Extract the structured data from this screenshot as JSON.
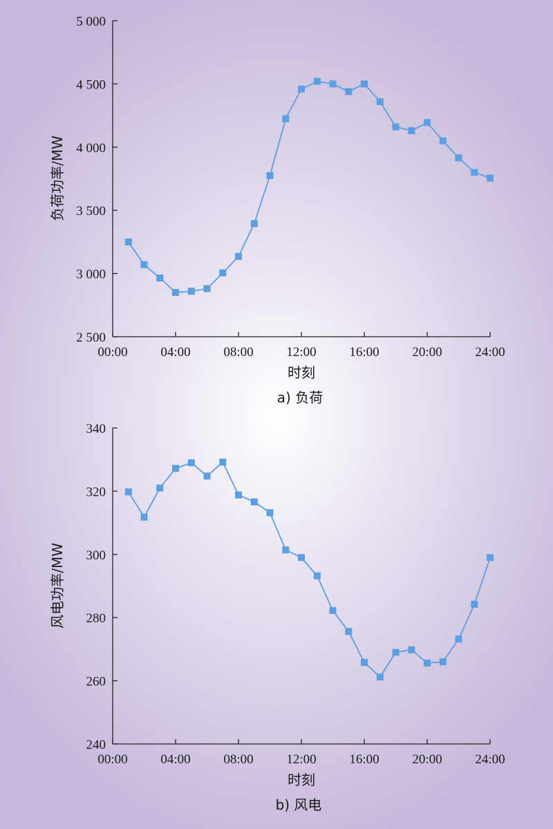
{
  "colors": {
    "series": "#5b9fe0",
    "axis": "#222222"
  },
  "chart_data": [
    {
      "type": "line",
      "caption": "a) 负荷",
      "xlabel": "时刻",
      "ylabel": "负荷功率/MW",
      "x_ticks": [
        "00:00",
        "04:00",
        "08:00",
        "12:00",
        "16:00",
        "20:00",
        "24:00"
      ],
      "y_ticks": [
        "2 500",
        "3 000",
        "3 500",
        "4 000",
        "4 500",
        "5 000"
      ],
      "ylim": [
        2500,
        5000
      ],
      "xlim_hours": [
        0,
        24
      ],
      "grid": false,
      "marker": "square",
      "series": [
        {
          "x_hours": [
            1,
            2,
            3,
            4,
            5,
            6,
            7,
            8,
            9,
            10,
            11,
            12,
            13,
            14,
            15,
            16,
            17,
            18,
            19,
            20,
            21,
            22,
            23,
            24
          ],
          "values": [
            3250,
            3070,
            2965,
            2850,
            2860,
            2880,
            3005,
            3135,
            3395,
            3775,
            4225,
            4460,
            4520,
            4500,
            4440,
            4500,
            4360,
            4160,
            4130,
            4195,
            4050,
            3915,
            3800,
            3755
          ]
        }
      ]
    },
    {
      "type": "line",
      "caption": "b) 风电",
      "xlabel": "时刻",
      "ylabel": "风电功率/MW",
      "x_ticks": [
        "00:00",
        "04:00",
        "08:00",
        "12:00",
        "16:00",
        "20:00",
        "24:00"
      ],
      "y_ticks": [
        "240",
        "260",
        "280",
        "300",
        "320",
        "340"
      ],
      "ylim": [
        240,
        340
      ],
      "xlim_hours": [
        0,
        24
      ],
      "grid": false,
      "marker": "square",
      "series": [
        {
          "x_hours": [
            1,
            2,
            3,
            4,
            5,
            6,
            7,
            8,
            9,
            10,
            11,
            12,
            13,
            14,
            15,
            16,
            17,
            18,
            19,
            20,
            21,
            22,
            23,
            24
          ],
          "values": [
            319.8,
            311.8,
            321,
            327.2,
            329,
            324.8,
            329.2,
            318.8,
            316.6,
            313.2,
            301.4,
            299,
            293.2,
            282.2,
            275.6,
            265.8,
            261.2,
            269,
            269.8,
            265.6,
            266,
            273.2,
            284.2,
            299
          ]
        }
      ]
    }
  ]
}
